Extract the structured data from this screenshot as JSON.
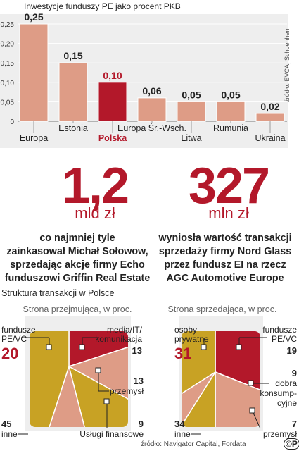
{
  "colors": {
    "bar": "#de9c86",
    "bar_highlight": "#b3182a",
    "red": "#b3182a",
    "gold": "#c8a224",
    "salmon": "#de9c86",
    "panel": "#eeeeee"
  },
  "chart_data": [
    {
      "type": "bar",
      "title": "Inwestycje funduszy PE jako procent PKB",
      "categories": [
        "Europa",
        "Estonia",
        "Polska",
        "Europa Śr.-Wsch.",
        "Litwa",
        "Rumunia",
        "Ukraina"
      ],
      "values": [
        0.25,
        0.15,
        0.1,
        0.06,
        0.05,
        0.05,
        0.02
      ],
      "value_labels": [
        "0,25",
        "0,15",
        "0,10",
        "0,06",
        "0,05",
        "0,05",
        "0,02"
      ],
      "highlight": "Polska",
      "ylim": [
        0,
        0.25
      ],
      "yticks": [
        "0",
        "0,05",
        "0,10",
        "0,15",
        "0,20",
        "0,25"
      ],
      "grid": true,
      "source": "źródło: EVCA, Schoenherr"
    },
    {
      "type": "pie",
      "title": "Strona przejmująca, w proc.",
      "slices": [
        {
          "label": "fundusze PE/VC",
          "value": 20,
          "color": "#b3182a"
        },
        {
          "label": "media/IT/ komunikacja",
          "value": 13,
          "color": "#de9c86"
        },
        {
          "label": "przemysł",
          "value": 13,
          "color": "#c8a224"
        },
        {
          "label": "Usługi finansowe",
          "value": 9,
          "color": "#de9c86"
        },
        {
          "label": "inne",
          "value": 45,
          "color": "#c8a224"
        }
      ]
    },
    {
      "type": "pie",
      "title": "Strona sprzedająca, w proc.",
      "slices": [
        {
          "label": "osoby prywatne",
          "value": 31,
          "color": "#b3182a"
        },
        {
          "label": "fundusze PE/VC",
          "value": 19,
          "color": "#de9c86"
        },
        {
          "label": "dobra konsump- cyjne",
          "value": 9,
          "color": "#c8a224"
        },
        {
          "label": "przemysł",
          "value": 7,
          "color": "#de9c86"
        },
        {
          "label": "inne",
          "value": 34,
          "color": "#c8a224"
        }
      ]
    }
  ],
  "stats": [
    {
      "number": "1,2",
      "unit": "mld zł",
      "text": [
        "co najmniej tyle",
        "zainkasował Michał Sołowow,",
        "sprzedając akcje firmy Echo",
        "funduszowi Griffin Real Estate"
      ]
    },
    {
      "number": "327",
      "unit": "mln zł",
      "text": [
        "wyniosła wartość transakcji",
        "sprzedaży firmy Nord Glass",
        "przez fundusz EI na rzecz",
        "AGC Automotive Europe"
      ]
    }
  ],
  "section_title": "Struktura transakcji w Polsce",
  "footer_source": "źródło: Navigator Capital, Fordata",
  "footer_logo": "©P"
}
